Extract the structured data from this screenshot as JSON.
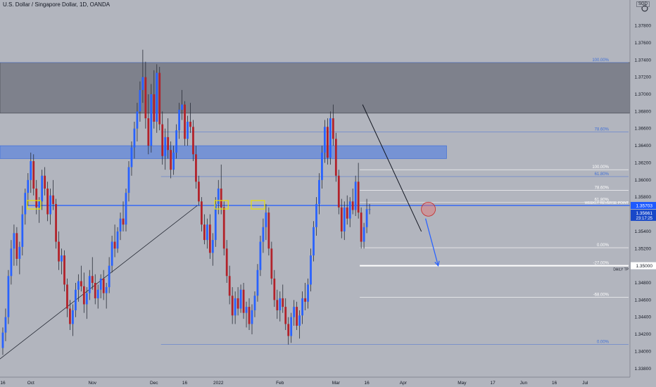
{
  "header": {
    "title": "U.S. Dollar / Singapore Dollar, 1D, OANDA",
    "currency": "SGD"
  },
  "colors": {
    "background": "#b2b5be",
    "up_candle": "#2962ff",
    "down_candle": "#b2222a",
    "zone_dark": "#787b86",
    "zone_blue": "#6f8fd6",
    "fib_line": "#5b7fd0",
    "support_line": "#1e5aff",
    "callout_box": "#e8e100",
    "arrow": "#2962ff",
    "price_tag": "#1e5aff",
    "trendline": "#131722"
  },
  "chart_data": {
    "type": "candlestick",
    "symbol": "USDSGD",
    "interval": "1D",
    "source": "OANDA",
    "ylim": [
      1.337,
      1.381
    ],
    "y_ticks": [
      "1.37800",
      "1.37600",
      "1.37400",
      "1.37200",
      "1.37000",
      "1.36800",
      "1.36600",
      "1.36400",
      "1.36200",
      "1.36000",
      "1.35800",
      "1.35600",
      "1.35400",
      "1.35200",
      "1.35000",
      "1.34800",
      "1.34600",
      "1.34400",
      "1.34200",
      "1.34000",
      "1.33800"
    ],
    "x_ticks": [
      {
        "label": "16",
        "bar": 0
      },
      {
        "label": "Oct",
        "bar": 10
      },
      {
        "label": "Nov",
        "bar": 32
      },
      {
        "label": "Dec",
        "bar": 54
      },
      {
        "label": "16",
        "bar": 65
      },
      {
        "label": "2022",
        "bar": 77
      },
      {
        "label": "Feb",
        "bar": 99
      },
      {
        "label": "Mar",
        "bar": 119
      },
      {
        "label": "16",
        "bar": 130
      },
      {
        "label": "Apr",
        "bar": 143
      },
      {
        "label": "May",
        "bar": 164
      },
      {
        "label": "17",
        "bar": 175
      },
      {
        "label": "Jun",
        "bar": 186
      },
      {
        "label": "16",
        "bar": 197
      },
      {
        "label": "Jul",
        "bar": 208
      }
    ],
    "x_range": [
      -0.5,
      224.5
    ],
    "candles": [
      {
        "o": 1.3404,
        "h": 1.3428,
        "l": 1.3396,
        "c": 1.3422
      },
      {
        "o": 1.3422,
        "h": 1.345,
        "l": 1.3412,
        "c": 1.344
      },
      {
        "o": 1.344,
        "h": 1.3495,
        "l": 1.3432,
        "c": 1.3488
      },
      {
        "o": 1.3488,
        "h": 1.353,
        "l": 1.3478,
        "c": 1.352
      },
      {
        "o": 1.352,
        "h": 1.3548,
        "l": 1.35,
        "c": 1.3538
      },
      {
        "o": 1.3538,
        "h": 1.3545,
        "l": 1.35,
        "c": 1.3508
      },
      {
        "o": 1.3508,
        "h": 1.3528,
        "l": 1.349,
        "c": 1.3522
      },
      {
        "o": 1.3522,
        "h": 1.357,
        "l": 1.3512,
        "c": 1.356
      },
      {
        "o": 1.356,
        "h": 1.359,
        "l": 1.3548,
        "c": 1.3585
      },
      {
        "o": 1.3585,
        "h": 1.3608,
        "l": 1.357,
        "c": 1.36
      },
      {
        "o": 1.36,
        "h": 1.3632,
        "l": 1.3585,
        "c": 1.3622
      },
      {
        "o": 1.3622,
        "h": 1.363,
        "l": 1.3582,
        "c": 1.359
      },
      {
        "o": 1.359,
        "h": 1.36,
        "l": 1.356,
        "c": 1.3568
      },
      {
        "o": 1.3568,
        "h": 1.358,
        "l": 1.355,
        "c": 1.3575
      },
      {
        "o": 1.3575,
        "h": 1.3612,
        "l": 1.3565,
        "c": 1.3605
      },
      {
        "o": 1.3605,
        "h": 1.3615,
        "l": 1.3582,
        "c": 1.359
      },
      {
        "o": 1.359,
        "h": 1.3598,
        "l": 1.3552,
        "c": 1.356
      },
      {
        "o": 1.356,
        "h": 1.359,
        "l": 1.3548,
        "c": 1.3582
      },
      {
        "o": 1.3582,
        "h": 1.36,
        "l": 1.3565,
        "c": 1.3572
      },
      {
        "o": 1.3572,
        "h": 1.3578,
        "l": 1.352,
        "c": 1.3528
      },
      {
        "o": 1.3528,
        "h": 1.354,
        "l": 1.3495,
        "c": 1.3505
      },
      {
        "o": 1.3505,
        "h": 1.352,
        "l": 1.349,
        "c": 1.3512
      },
      {
        "o": 1.3512,
        "h": 1.3518,
        "l": 1.347,
        "c": 1.3478
      },
      {
        "o": 1.3478,
        "h": 1.3485,
        "l": 1.344,
        "c": 1.345
      },
      {
        "o": 1.345,
        "h": 1.346,
        "l": 1.3425,
        "c": 1.3432
      },
      {
        "o": 1.3432,
        "h": 1.3455,
        "l": 1.3418,
        "c": 1.3448
      },
      {
        "o": 1.3448,
        "h": 1.348,
        "l": 1.344,
        "c": 1.3472
      },
      {
        "o": 1.3472,
        "h": 1.349,
        "l": 1.3458,
        "c": 1.3482
      },
      {
        "o": 1.3482,
        "h": 1.35,
        "l": 1.347,
        "c": 1.3476
      },
      {
        "o": 1.3476,
        "h": 1.3492,
        "l": 1.3445,
        "c": 1.3455
      },
      {
        "o": 1.3455,
        "h": 1.3475,
        "l": 1.3438,
        "c": 1.3468
      },
      {
        "o": 1.3468,
        "h": 1.3495,
        "l": 1.346,
        "c": 1.3488
      },
      {
        "o": 1.3488,
        "h": 1.351,
        "l": 1.3472,
        "c": 1.348
      },
      {
        "o": 1.348,
        "h": 1.349,
        "l": 1.3455,
        "c": 1.3462
      },
      {
        "o": 1.3462,
        "h": 1.3478,
        "l": 1.345,
        "c": 1.3472
      },
      {
        "o": 1.3472,
        "h": 1.349,
        "l": 1.3462,
        "c": 1.3485
      },
      {
        "o": 1.3485,
        "h": 1.3495,
        "l": 1.346,
        "c": 1.3468
      },
      {
        "o": 1.3468,
        "h": 1.348,
        "l": 1.345,
        "c": 1.3475
      },
      {
        "o": 1.3475,
        "h": 1.351,
        "l": 1.3468,
        "c": 1.35
      },
      {
        "o": 1.35,
        "h": 1.3535,
        "l": 1.3492,
        "c": 1.3528
      },
      {
        "o": 1.3528,
        "h": 1.3548,
        "l": 1.351,
        "c": 1.352
      },
      {
        "o": 1.352,
        "h": 1.3545,
        "l": 1.3515,
        "c": 1.354
      },
      {
        "o": 1.354,
        "h": 1.3562,
        "l": 1.353,
        "c": 1.3555
      },
      {
        "o": 1.3555,
        "h": 1.3575,
        "l": 1.354,
        "c": 1.3548
      },
      {
        "o": 1.3548,
        "h": 1.359,
        "l": 1.354,
        "c": 1.3585
      },
      {
        "o": 1.3585,
        "h": 1.3622,
        "l": 1.3575,
        "c": 1.3615
      },
      {
        "o": 1.3615,
        "h": 1.3645,
        "l": 1.3605,
        "c": 1.3638
      },
      {
        "o": 1.3638,
        "h": 1.3668,
        "l": 1.3625,
        "c": 1.366
      },
      {
        "o": 1.366,
        "h": 1.369,
        "l": 1.3645,
        "c": 1.368
      },
      {
        "o": 1.368,
        "h": 1.3715,
        "l": 1.3668,
        "c": 1.3705
      },
      {
        "o": 1.3705,
        "h": 1.3752,
        "l": 1.369,
        "c": 1.372
      },
      {
        "o": 1.372,
        "h": 1.3738,
        "l": 1.366,
        "c": 1.3672
      },
      {
        "o": 1.3672,
        "h": 1.37,
        "l": 1.363,
        "c": 1.364
      },
      {
        "o": 1.364,
        "h": 1.3712,
        "l": 1.3632,
        "c": 1.37
      },
      {
        "o": 1.37,
        "h": 1.3728,
        "l": 1.366,
        "c": 1.3668
      },
      {
        "o": 1.3668,
        "h": 1.3735,
        "l": 1.3655,
        "c": 1.3725
      },
      {
        "o": 1.3725,
        "h": 1.3732,
        "l": 1.3658,
        "c": 1.3665
      },
      {
        "o": 1.3665,
        "h": 1.368,
        "l": 1.3618,
        "c": 1.3628
      },
      {
        "o": 1.3628,
        "h": 1.366,
        "l": 1.3612,
        "c": 1.365
      },
      {
        "o": 1.365,
        "h": 1.3672,
        "l": 1.3625,
        "c": 1.3635
      },
      {
        "o": 1.3635,
        "h": 1.3645,
        "l": 1.3602,
        "c": 1.3612
      },
      {
        "o": 1.3612,
        "h": 1.364,
        "l": 1.3606,
        "c": 1.3632
      },
      {
        "o": 1.3632,
        "h": 1.3665,
        "l": 1.3625,
        "c": 1.3658
      },
      {
        "o": 1.3658,
        "h": 1.369,
        "l": 1.3648,
        "c": 1.3682
      },
      {
        "o": 1.3682,
        "h": 1.3705,
        "l": 1.367,
        "c": 1.3688
      },
      {
        "o": 1.3688,
        "h": 1.3692,
        "l": 1.364,
        "c": 1.3648
      },
      {
        "o": 1.3648,
        "h": 1.3675,
        "l": 1.364,
        "c": 1.3668
      },
      {
        "o": 1.3668,
        "h": 1.369,
        "l": 1.3655,
        "c": 1.3662
      },
      {
        "o": 1.3662,
        "h": 1.367,
        "l": 1.3622,
        "c": 1.363
      },
      {
        "o": 1.363,
        "h": 1.364,
        "l": 1.359,
        "c": 1.3598
      },
      {
        "o": 1.3598,
        "h": 1.3605,
        "l": 1.357,
        "c": 1.3575
      },
      {
        "o": 1.3575,
        "h": 1.358,
        "l": 1.354,
        "c": 1.3548
      },
      {
        "o": 1.3548,
        "h": 1.356,
        "l": 1.3525,
        "c": 1.353
      },
      {
        "o": 1.353,
        "h": 1.3555,
        "l": 1.352,
        "c": 1.3548
      },
      {
        "o": 1.3548,
        "h": 1.356,
        "l": 1.3508,
        "c": 1.3515
      },
      {
        "o": 1.3515,
        "h": 1.3538,
        "l": 1.35,
        "c": 1.353
      },
      {
        "o": 1.353,
        "h": 1.358,
        "l": 1.3522,
        "c": 1.3572
      },
      {
        "o": 1.3572,
        "h": 1.36,
        "l": 1.356,
        "c": 1.359
      },
      {
        "o": 1.359,
        "h": 1.3618,
        "l": 1.356,
        "c": 1.3568
      },
      {
        "o": 1.3568,
        "h": 1.3575,
        "l": 1.3512,
        "c": 1.352
      },
      {
        "o": 1.352,
        "h": 1.353,
        "l": 1.348,
        "c": 1.3488
      },
      {
        "o": 1.3488,
        "h": 1.35,
        "l": 1.3455,
        "c": 1.3465
      },
      {
        "o": 1.3465,
        "h": 1.3475,
        "l": 1.3432,
        "c": 1.3442
      },
      {
        "o": 1.3442,
        "h": 1.347,
        "l": 1.3432,
        "c": 1.3462
      },
      {
        "o": 1.3462,
        "h": 1.3475,
        "l": 1.3442,
        "c": 1.345
      },
      {
        "o": 1.345,
        "h": 1.3478,
        "l": 1.3445,
        "c": 1.3472
      },
      {
        "o": 1.3472,
        "h": 1.348,
        "l": 1.3438,
        "c": 1.3445
      },
      {
        "o": 1.3445,
        "h": 1.3458,
        "l": 1.3428,
        "c": 1.3452
      },
      {
        "o": 1.3452,
        "h": 1.3462,
        "l": 1.3425,
        "c": 1.3432
      },
      {
        "o": 1.3432,
        "h": 1.3455,
        "l": 1.342,
        "c": 1.3448
      },
      {
        "o": 1.3448,
        "h": 1.347,
        "l": 1.344,
        "c": 1.3465
      },
      {
        "o": 1.3465,
        "h": 1.3502,
        "l": 1.3458,
        "c": 1.3495
      },
      {
        "o": 1.3495,
        "h": 1.3535,
        "l": 1.3488,
        "c": 1.3528
      },
      {
        "o": 1.3528,
        "h": 1.3555,
        "l": 1.3515,
        "c": 1.3545
      },
      {
        "o": 1.3545,
        "h": 1.3572,
        "l": 1.353,
        "c": 1.3562
      },
      {
        "o": 1.3562,
        "h": 1.3568,
        "l": 1.3512,
        "c": 1.352
      },
      {
        "o": 1.352,
        "h": 1.3528,
        "l": 1.3478,
        "c": 1.3485
      },
      {
        "o": 1.3485,
        "h": 1.3495,
        "l": 1.3452,
        "c": 1.346
      },
      {
        "o": 1.346,
        "h": 1.3472,
        "l": 1.3438,
        "c": 1.3448
      },
      {
        "o": 1.3448,
        "h": 1.347,
        "l": 1.3435,
        "c": 1.3462
      },
      {
        "o": 1.3462,
        "h": 1.3478,
        "l": 1.3445,
        "c": 1.3452
      },
      {
        "o": 1.3452,
        "h": 1.3462,
        "l": 1.3425,
        "c": 1.3432
      },
      {
        "o": 1.3432,
        "h": 1.344,
        "l": 1.3408,
        "c": 1.3418
      },
      {
        "o": 1.3418,
        "h": 1.3445,
        "l": 1.341,
        "c": 1.344
      },
      {
        "o": 1.344,
        "h": 1.346,
        "l": 1.343,
        "c": 1.3452
      },
      {
        "o": 1.3452,
        "h": 1.3458,
        "l": 1.3425,
        "c": 1.343
      },
      {
        "o": 1.343,
        "h": 1.3448,
        "l": 1.3415,
        "c": 1.3442
      },
      {
        "o": 1.3442,
        "h": 1.347,
        "l": 1.3432,
        "c": 1.3462
      },
      {
        "o": 1.3462,
        "h": 1.348,
        "l": 1.3448,
        "c": 1.3458
      },
      {
        "o": 1.3458,
        "h": 1.3485,
        "l": 1.345,
        "c": 1.3478
      },
      {
        "o": 1.3478,
        "h": 1.352,
        "l": 1.347,
        "c": 1.3512
      },
      {
        "o": 1.3512,
        "h": 1.3552,
        "l": 1.3505,
        "c": 1.3545
      },
      {
        "o": 1.3545,
        "h": 1.358,
        "l": 1.3535,
        "c": 1.3572
      },
      {
        "o": 1.3572,
        "h": 1.3608,
        "l": 1.356,
        "c": 1.36
      },
      {
        "o": 1.36,
        "h": 1.364,
        "l": 1.359,
        "c": 1.3632
      },
      {
        "o": 1.3632,
        "h": 1.367,
        "l": 1.362,
        "c": 1.3662
      },
      {
        "o": 1.3662,
        "h": 1.3672,
        "l": 1.3618,
        "c": 1.3626
      },
      {
        "o": 1.3626,
        "h": 1.368,
        "l": 1.3618,
        "c": 1.3672
      },
      {
        "o": 1.3672,
        "h": 1.3688,
        "l": 1.364,
        "c": 1.3648
      },
      {
        "o": 1.3648,
        "h": 1.3655,
        "l": 1.3598,
        "c": 1.3605
      },
      {
        "o": 1.3605,
        "h": 1.3612,
        "l": 1.356,
        "c": 1.3568
      },
      {
        "o": 1.3568,
        "h": 1.3578,
        "l": 1.3532,
        "c": 1.354
      },
      {
        "o": 1.354,
        "h": 1.3575,
        "l": 1.353,
        "c": 1.3568
      },
      {
        "o": 1.3568,
        "h": 1.3582,
        "l": 1.3548,
        "c": 1.3555
      },
      {
        "o": 1.3555,
        "h": 1.358,
        "l": 1.3545,
        "c": 1.3575
      },
      {
        "o": 1.3575,
        "h": 1.359,
        "l": 1.356,
        "c": 1.3565
      },
      {
        "o": 1.3565,
        "h": 1.3605,
        "l": 1.3558,
        "c": 1.3598
      },
      {
        "o": 1.3598,
        "h": 1.362,
        "l": 1.3555,
        "c": 1.3562
      },
      {
        "o": 1.3562,
        "h": 1.3568,
        "l": 1.352,
        "c": 1.3528
      },
      {
        "o": 1.3528,
        "h": 1.355,
        "l": 1.352,
        "c": 1.3545
      },
      {
        "o": 1.3545,
        "h": 1.3578,
        "l": 1.3538,
        "c": 1.3566
      },
      {
        "o": 1.3566,
        "h": 1.3572,
        "l": 1.356,
        "c": 1.3566
      }
    ],
    "zones": [
      {
        "name": "supply-zone",
        "from": 1.3678,
        "to": 1.3737,
        "x0": -0.5,
        "x1": 224.5
      },
      {
        "name": "resistance-band",
        "from": 1.3625,
        "to": 1.364,
        "x0": -0.5,
        "x1": 159
      }
    ],
    "fib_levels": [
      {
        "label": "100.00%",
        "value": 1.3737,
        "x0": -0.5
      },
      {
        "label": "78.60%",
        "value": 1.3656,
        "x0": 57
      },
      {
        "label": "100.00%",
        "value": 1.3612,
        "x0": 128
      },
      {
        "label": "61.80%",
        "value": 1.3604,
        "x0": 57
      },
      {
        "label": "78.60%",
        "value": 1.3588,
        "x0": 128
      },
      {
        "label": "61.80%",
        "value": 1.3574,
        "x0": 128
      },
      {
        "label": "0.00%",
        "value": 1.3521,
        "x0": 128
      },
      {
        "label": "-27.00%",
        "value": 1.35,
        "x0": 128
      },
      {
        "label": "-68.00%",
        "value": 1.3463,
        "x0": 128
      },
      {
        "label": "0.00%",
        "value": 1.3408,
        "x0": 57
      }
    ],
    "support_line": {
      "value": 1.35703,
      "label": "WEEKLY REVERSE POINT"
    },
    "target": {
      "value": 1.35,
      "label": "DAILY TP"
    },
    "callouts": [
      {
        "bar": 11,
        "value": 1.35703
      },
      {
        "bar": 78,
        "value": 1.35703
      },
      {
        "bar": 91,
        "value": 1.35703
      }
    ],
    "trend_up": {
      "x0": -1,
      "y0": 1.339,
      "x1": 70,
      "y1": 1.35703
    },
    "trend_down": {
      "x0": 129,
      "y0": 1.3688,
      "x1": 150,
      "y1": 1.354
    },
    "circle": {
      "bar": 152,
      "value": 1.3566
    },
    "projection": {
      "x0": 151.5,
      "y0": 1.3555,
      "x1": 156,
      "y1": 1.35
    },
    "price_tags": {
      "weekly": "1.35703",
      "last": "1.35661",
      "countdown": "23:17:25",
      "tp": "1.35000"
    }
  }
}
